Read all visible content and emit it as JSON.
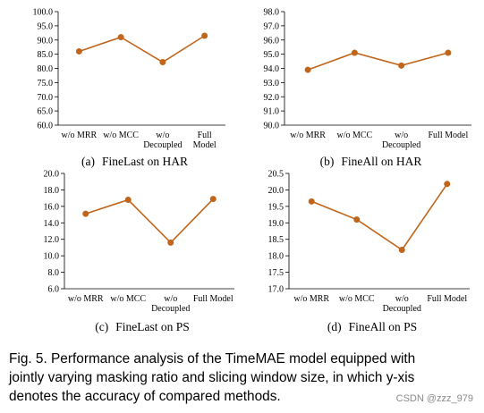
{
  "chart_data": [
    {
      "type": "line",
      "categories": [
        [
          "w/o MRR"
        ],
        [
          "w/o MCC"
        ],
        [
          "w/o",
          "Decoupled"
        ],
        [
          "Full",
          "Model"
        ]
      ],
      "values": [
        86.0,
        91.0,
        82.2,
        91.5
      ],
      "ylim": [
        60.0,
        100.0
      ],
      "yticks": [
        "60.0",
        "65.0",
        "70.0",
        "75.0",
        "80.0",
        "85.0",
        "90.0",
        "95.0",
        "100.0"
      ],
      "panel_label": "(a)",
      "caption": "FineLast on HAR",
      "color": "#c0651a",
      "xlabel": "",
      "ylabel": "",
      "grid": false
    },
    {
      "type": "line",
      "categories": [
        [
          "w/o MRR"
        ],
        [
          "w/o MCC"
        ],
        [
          "w/o",
          "Decoupled"
        ],
        [
          "Full Model"
        ]
      ],
      "values": [
        93.9,
        95.1,
        94.2,
        95.1
      ],
      "ylim": [
        90.0,
        98.0
      ],
      "yticks": [
        "90.0",
        "91.0",
        "92.0",
        "93.0",
        "94.0",
        "95.0",
        "96.0",
        "97.0",
        "98.0"
      ],
      "panel_label": "(b)",
      "caption": "FineAll on HAR",
      "color": "#c0651a",
      "xlabel": "",
      "ylabel": "",
      "grid": false
    },
    {
      "type": "line",
      "categories": [
        [
          "w/o MRR"
        ],
        [
          "w/o MCC"
        ],
        [
          "w/o",
          "Decoupled"
        ],
        [
          "Full Model"
        ]
      ],
      "values": [
        15.1,
        16.8,
        11.6,
        16.9
      ],
      "ylim": [
        6.0,
        20.0
      ],
      "yticks": [
        "6.0",
        "8.0",
        "10.0",
        "12.0",
        "14.0",
        "16.0",
        "18.0",
        "20.0"
      ],
      "panel_label": "(c)",
      "caption": "FineLast on PS",
      "color": "#c0651a",
      "xlabel": "",
      "ylabel": "",
      "grid": false
    },
    {
      "type": "line",
      "categories": [
        [
          "w/o MRR"
        ],
        [
          "w/o MCC"
        ],
        [
          "w/o",
          "Decoupled"
        ],
        [
          "Full Model"
        ]
      ],
      "values": [
        19.65,
        19.1,
        18.18,
        20.18
      ],
      "ylim": [
        17.0,
        20.5
      ],
      "yticks": [
        "17.0",
        "17.5",
        "18.0",
        "18.5",
        "19.0",
        "19.5",
        "20.0",
        "20.5"
      ],
      "panel_label": "(d)",
      "caption": "FineAll on PS",
      "color": "#c0651a",
      "xlabel": "",
      "ylabel": "",
      "grid": false
    }
  ],
  "figure_caption": {
    "lines": [
      "Fig. 5. Performance analysis of the TimeMAE model equipped with",
      "jointly varying masking ratio and slicing window size, in which y-xis",
      "denotes the accuracy of compared methods."
    ]
  },
  "watermark": "CSDN @zzz_979"
}
